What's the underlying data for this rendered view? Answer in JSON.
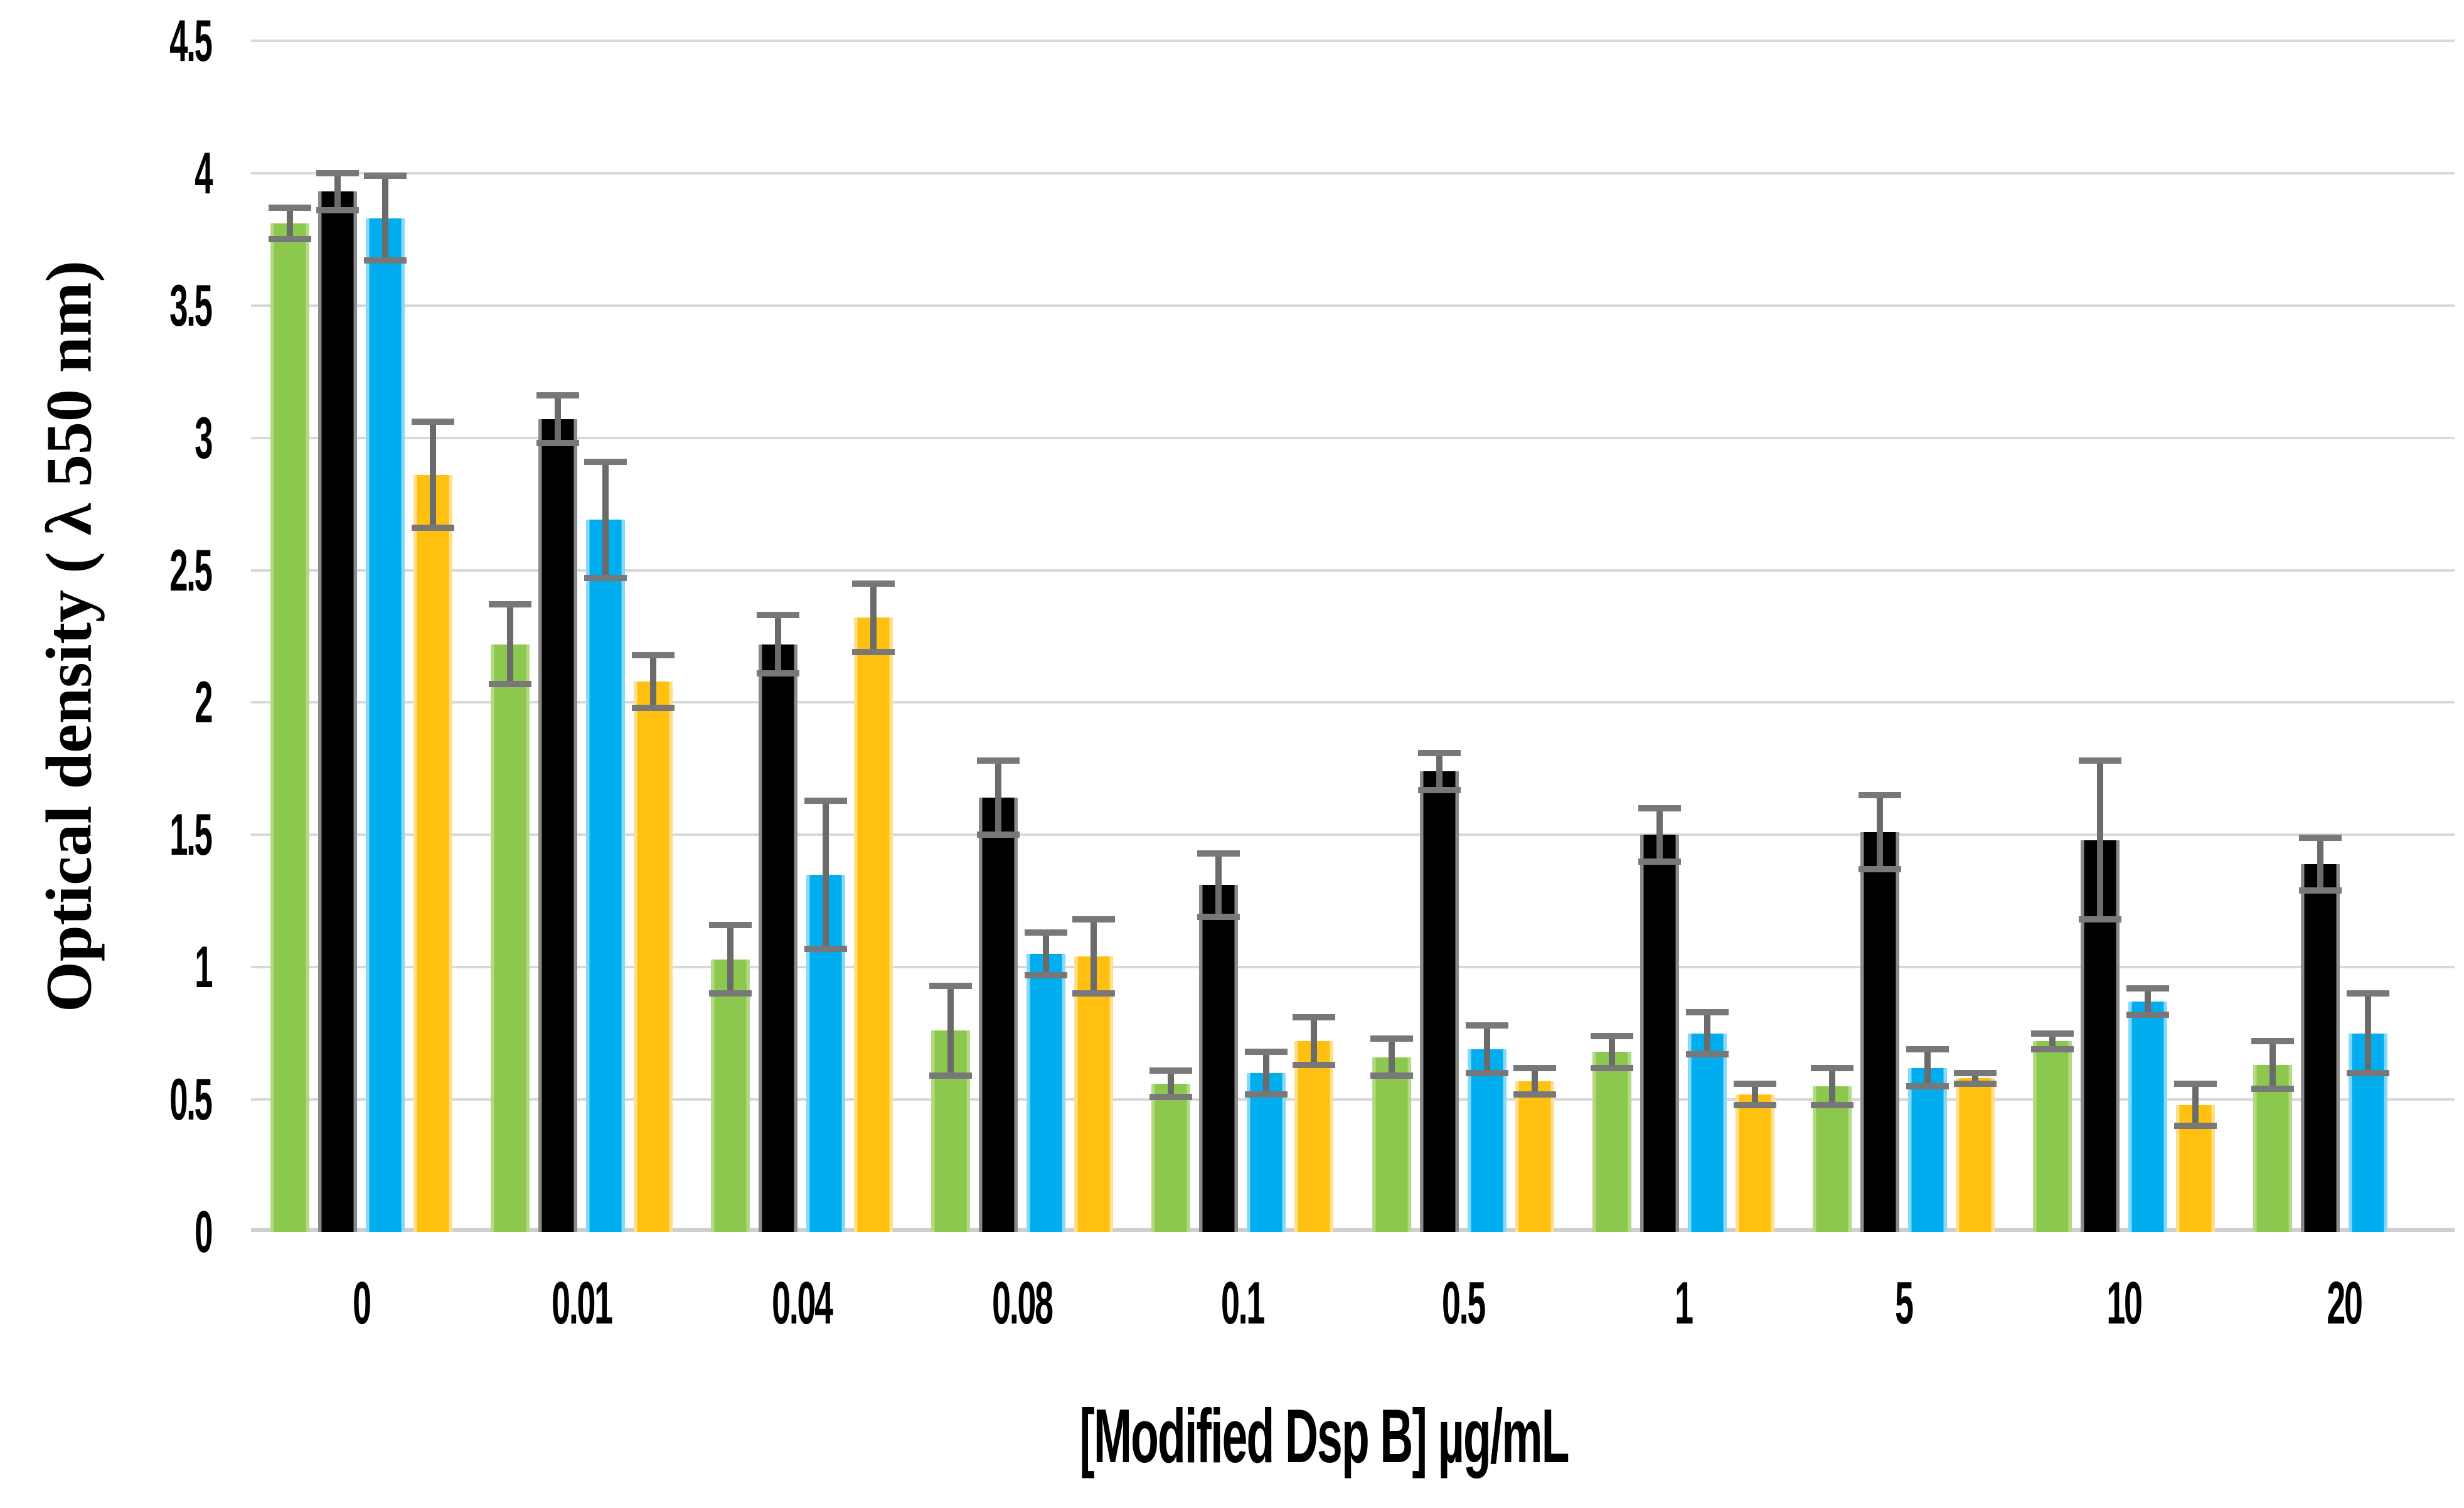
{
  "chart_data": {
    "type": "bar",
    "title": "",
    "xlabel": "[Modified Dsp B] µg/mL",
    "ylabel": "Optical density ( λ 550 nm)",
    "ylim": [
      0,
      4.5
    ],
    "ytick_step": 0.5,
    "ytick_labels": [
      "4.5",
      "4",
      "3.5",
      "3",
      "2.5",
      "2",
      "1.5",
      "1",
      "0.5",
      "0"
    ],
    "categories": [
      "0",
      "0.01",
      "0.04",
      "0.08",
      "0.1",
      "0.5",
      "1",
      "5",
      "10",
      "20"
    ],
    "grid": true,
    "legend_position": "none",
    "gridline_color": "#D9D9D9",
    "error_bar_color": "#6b6b6b",
    "series": [
      {
        "name": "green-series",
        "color": "#8DC84E",
        "edge_color": "#B3D983",
        "values": [
          3.81,
          2.22,
          1.03,
          0.76,
          0.56,
          0.66,
          0.68,
          0.55,
          0.72,
          0.63
        ],
        "errors": [
          0.06,
          0.15,
          0.13,
          0.17,
          0.05,
          0.07,
          0.06,
          0.07,
          0.03,
          0.09
        ]
      },
      {
        "name": "black-series",
        "color": "#000000",
        "edge_color": "#8a8a8a",
        "values": [
          3.93,
          3.07,
          2.22,
          1.64,
          1.31,
          1.74,
          1.5,
          1.51,
          1.48,
          1.39
        ],
        "errors": [
          0.07,
          0.09,
          0.11,
          0.14,
          0.12,
          0.07,
          0.1,
          0.14,
          0.3,
          0.1
        ]
      },
      {
        "name": "blue-series",
        "color": "#00AEEF",
        "edge_color": "#86D9F7",
        "values": [
          3.83,
          2.69,
          1.35,
          1.05,
          0.6,
          0.69,
          0.75,
          0.62,
          0.87,
          0.75
        ],
        "errors": [
          0.16,
          0.22,
          0.28,
          0.08,
          0.08,
          0.09,
          0.08,
          0.07,
          0.05,
          0.15
        ]
      },
      {
        "name": "yellow-series",
        "color": "#FFC010",
        "edge_color": "#FFDF8C",
        "values": [
          2.86,
          2.08,
          2.32,
          1.04,
          0.72,
          0.57,
          0.52,
          0.58,
          0.48,
          null
        ],
        "errors": [
          0.2,
          0.1,
          0.13,
          0.14,
          0.09,
          0.05,
          0.04,
          0.02,
          0.08,
          null
        ]
      }
    ]
  }
}
